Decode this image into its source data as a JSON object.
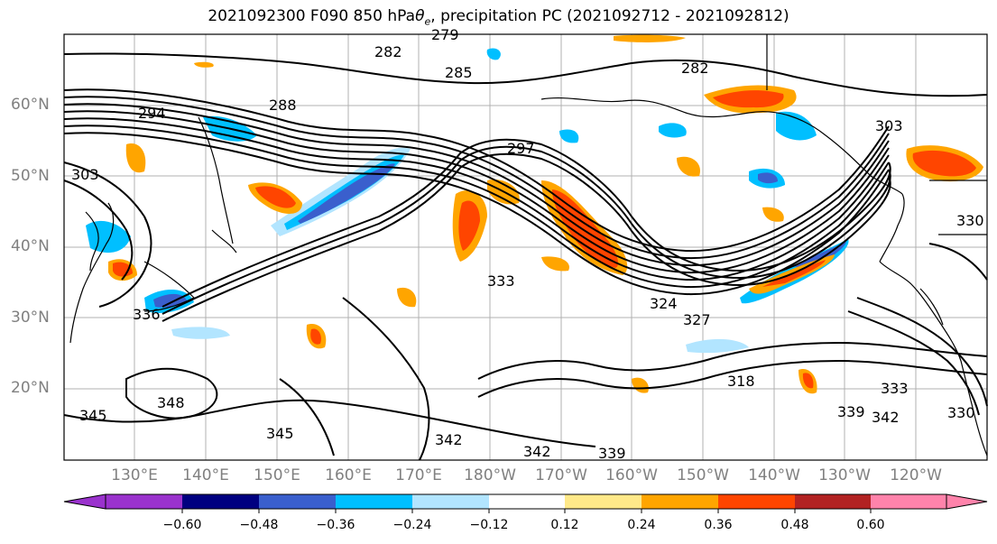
{
  "title": {
    "prefix": "2021092300 F090 850 hPa ",
    "theta": "θ",
    "theta_sub": "e",
    "suffix": ", precipitation PC (2021092712 - 2021092812)"
  },
  "lat_labels": [
    "60°N",
    "50°N",
    "40°N",
    "30°N",
    "20°N"
  ],
  "lon_labels": [
    "130°E",
    "140°E",
    "150°E",
    "160°E",
    "170°E",
    "180°W",
    "170°W",
    "160°W",
    "150°W",
    "140°W",
    "130°W",
    "120°W"
  ],
  "contour_labels": [
    "282",
    "279",
    "285",
    "282",
    "288",
    "294",
    "297",
    "303",
    "303",
    "330",
    "333",
    "336",
    "324",
    "318",
    "327",
    "348",
    "345",
    "345",
    "342",
    "342",
    "339",
    "339",
    "342",
    "330",
    "333"
  ],
  "colorbar": {
    "ticks": [
      "−0.60",
      "−0.48",
      "−0.36",
      "−0.24",
      "−0.12",
      "0.12",
      "0.24",
      "0.36",
      "0.48",
      "0.60"
    ],
    "colors": [
      "#9a32cd",
      "#000080",
      "#3a5fcd",
      "#00bfff",
      "#b2e5ff",
      "#ffffff",
      "#ffe989",
      "#ffa500",
      "#ff4500",
      "#b22222",
      "#ff83ab"
    ]
  }
}
